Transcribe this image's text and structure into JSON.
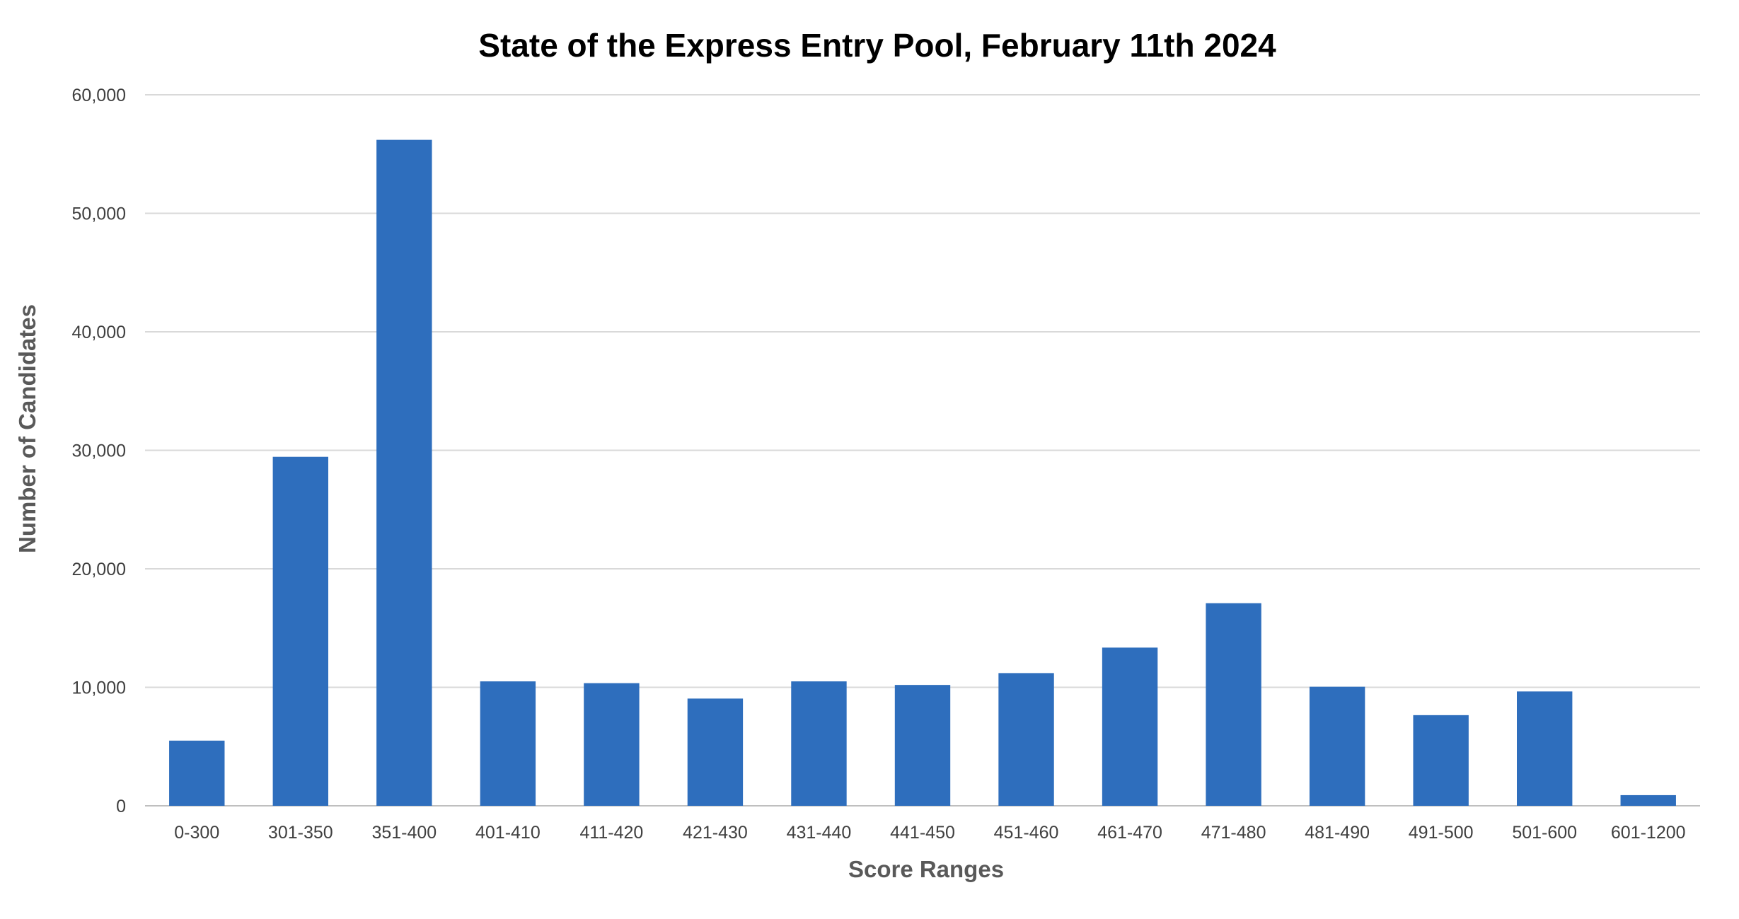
{
  "chart_data": {
    "type": "bar",
    "title": "State of the Express Entry Pool, February 11th 2024",
    "xlabel": "Score Ranges",
    "ylabel": "Number of Candidates",
    "ylim": [
      0,
      60000
    ],
    "yticks": [
      0,
      10000,
      20000,
      30000,
      40000,
      50000,
      60000
    ],
    "ytick_labels": [
      "0",
      "10,000",
      "20,000",
      "30,000",
      "40,000",
      "50,000",
      "60,000"
    ],
    "grid": true,
    "legend": "none",
    "bar_color": "#2e6ebd",
    "categories": [
      "0-300",
      "301-350",
      "351-400",
      "401-410",
      "411-420",
      "421-430",
      "431-440",
      "441-450",
      "451-460",
      "461-470",
      "471-480",
      "481-490",
      "491-500",
      "501-600",
      "601-1200"
    ],
    "values": [
      5500,
      29450,
      56200,
      10500,
      10350,
      9050,
      10500,
      10200,
      11200,
      13350,
      17100,
      10050,
      7650,
      9650,
      900
    ]
  }
}
